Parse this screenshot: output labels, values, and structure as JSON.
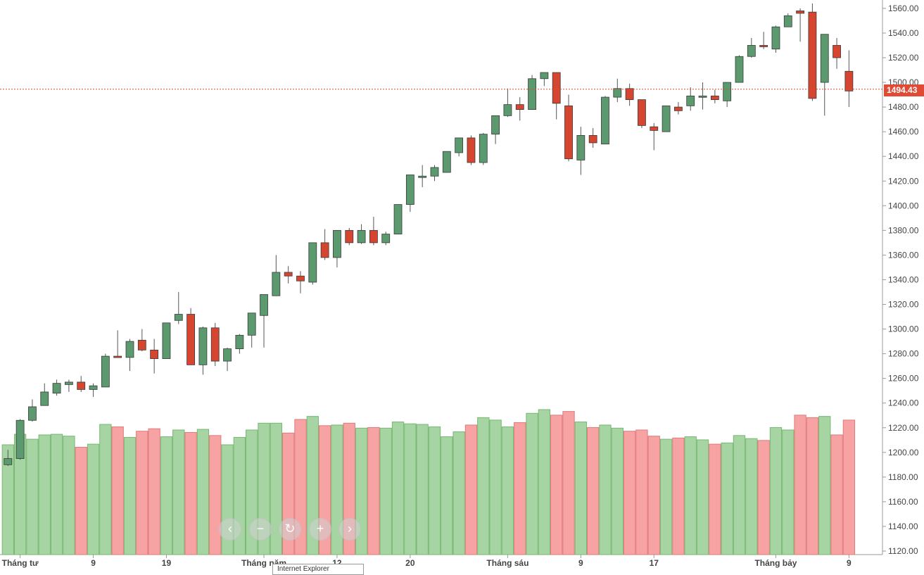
{
  "chart_data": {
    "type": "candlestick",
    "y_axis": {
      "ticks": [
        "1120.00",
        "1140.00",
        "1160.00",
        "1180.00",
        "1200.00",
        "1220.00",
        "1240.00",
        "1260.00",
        "1280.00",
        "1300.00",
        "1320.00",
        "1340.00",
        "1360.00",
        "1380.00",
        "1400.00",
        "1420.00",
        "1440.00",
        "1460.00",
        "1480.00",
        "1500.00",
        "1520.00",
        "1540.00",
        "1560.00"
      ],
      "min": 1117,
      "max": 1570
    },
    "x_axis": {
      "ticks": [
        {
          "label": "Tháng tư",
          "index": 1
        },
        {
          "label": "9",
          "index": 7
        },
        {
          "label": "19",
          "index": 13
        },
        {
          "label": "Tháng năm",
          "index": 21
        },
        {
          "label": "12",
          "index": 27
        },
        {
          "label": "20",
          "index": 33
        },
        {
          "label": "Tháng sáu",
          "index": 41
        },
        {
          "label": "9",
          "index": 47
        },
        {
          "label": "17",
          "index": 53
        },
        {
          "label": "Tháng bảy",
          "index": 63
        },
        {
          "label": "9",
          "index": 69
        }
      ]
    },
    "last_price": "1494.43",
    "last_price_value": 1494.43,
    "colors": {
      "up": "#5b9a6e",
      "down": "#d64530",
      "vol_up": "#a6d4a2",
      "vol_down": "#f7a3a3",
      "vol_up_border": "#76b972",
      "vol_down_border": "#e07a7a",
      "price_line": "#e04b35"
    },
    "candles": [
      [
        1190,
        1202,
        1189,
        1195
      ],
      [
        1195,
        1227,
        1194,
        1226
      ],
      [
        1226,
        1243,
        1225,
        1237
      ],
      [
        1238,
        1256,
        1238,
        1249
      ],
      [
        1248,
        1259,
        1246,
        1256
      ],
      [
        1255,
        1259,
        1249,
        1257
      ],
      [
        1257,
        1262,
        1249,
        1251
      ],
      [
        1251,
        1256,
        1245,
        1254
      ],
      [
        1253,
        1280,
        1253,
        1278
      ],
      [
        1278,
        1299,
        1277,
        1277
      ],
      [
        1277,
        1292,
        1266,
        1290
      ],
      [
        1291,
        1300,
        1282,
        1283
      ],
      [
        1283,
        1292,
        1264,
        1276
      ],
      [
        1276,
        1305,
        1276,
        1305
      ],
      [
        1307,
        1330,
        1304,
        1312
      ],
      [
        1312,
        1317,
        1271,
        1271
      ],
      [
        1271,
        1302,
        1263,
        1301
      ],
      [
        1301,
        1305,
        1270,
        1274
      ],
      [
        1274,
        1285,
        1266,
        1284
      ],
      [
        1284,
        1296,
        1280,
        1295
      ],
      [
        1295,
        1312,
        1285,
        1313
      ],
      [
        1311,
        1327,
        1285,
        1328
      ],
      [
        1327,
        1360,
        1327,
        1346
      ],
      [
        1346,
        1351,
        1337,
        1343
      ],
      [
        1343,
        1347,
        1329,
        1339
      ],
      [
        1338,
        1370,
        1336,
        1370
      ],
      [
        1370,
        1381,
        1356,
        1358
      ],
      [
        1358,
        1380,
        1350,
        1380
      ],
      [
        1380,
        1382,
        1368,
        1370
      ],
      [
        1370,
        1385,
        1369,
        1380
      ],
      [
        1380,
        1391,
        1368,
        1370
      ],
      [
        1370,
        1379,
        1368,
        1377
      ],
      [
        1377,
        1400,
        1377,
        1401
      ],
      [
        1401,
        1425,
        1395,
        1425
      ],
      [
        1424,
        1433,
        1415,
        1424
      ],
      [
        1424,
        1433,
        1420,
        1431
      ],
      [
        1427,
        1444,
        1427,
        1444
      ],
      [
        1443,
        1455,
        1440,
        1455
      ],
      [
        1455,
        1457,
        1433,
        1435
      ],
      [
        1435,
        1459,
        1433,
        1458
      ],
      [
        1458,
        1473,
        1450,
        1473
      ],
      [
        1473,
        1495,
        1472,
        1482
      ],
      [
        1482,
        1488,
        1469,
        1478
      ],
      [
        1478,
        1506,
        1478,
        1503
      ],
      [
        1503,
        1508,
        1497,
        1508
      ],
      [
        1508,
        1508,
        1470,
        1483
      ],
      [
        1481,
        1490,
        1436,
        1438
      ],
      [
        1437,
        1464,
        1425,
        1457
      ],
      [
        1457,
        1463,
        1447,
        1451
      ],
      [
        1450,
        1489,
        1450,
        1488
      ],
      [
        1488,
        1503,
        1484,
        1495
      ],
      [
        1495,
        1499,
        1481,
        1486
      ],
      [
        1486,
        1486,
        1463,
        1465
      ],
      [
        1464,
        1467,
        1445,
        1461
      ],
      [
        1460,
        1481,
        1460,
        1481
      ],
      [
        1480,
        1484,
        1474,
        1477
      ],
      [
        1481,
        1496,
        1477,
        1489
      ],
      [
        1489,
        1500,
        1478,
        1489
      ],
      [
        1489,
        1494,
        1483,
        1486
      ],
      [
        1485,
        1500,
        1480,
        1500
      ],
      [
        1500,
        1522,
        1500,
        1521
      ],
      [
        1521,
        1536,
        1520,
        1530
      ],
      [
        1530,
        1541,
        1527,
        1529
      ],
      [
        1527,
        1546,
        1524,
        1545
      ],
      [
        1545,
        1556,
        1545,
        1554
      ],
      [
        1558,
        1560,
        1533,
        1556
      ],
      [
        1557,
        1564,
        1485,
        1487
      ],
      [
        1500,
        1538,
        1473,
        1539
      ],
      [
        1530,
        1536,
        1511,
        1520
      ],
      [
        1509,
        1526,
        1480,
        1493
      ]
    ],
    "volumes": [
      178,
      195,
      187,
      194,
      195,
      192,
      174,
      179,
      211,
      207,
      190,
      200,
      204,
      191,
      202,
      198,
      203,
      193,
      178,
      190,
      202,
      213,
      213,
      197,
      219,
      224,
      209,
      210,
      213,
      205,
      206,
      205,
      215,
      212,
      211,
      207,
      191,
      199,
      210,
      222,
      218,
      207,
      214,
      229,
      235,
      226,
      232,
      215,
      206,
      210,
      205,
      200,
      202,
      192,
      187,
      189,
      191,
      186,
      179,
      181,
      193,
      188,
      185,
      206,
      202,
      226,
      222,
      224,
      194,
      218
    ],
    "volume_max": 240
  },
  "navigation": {
    "prev": "‹",
    "zoom_out": "−",
    "reset": "↻",
    "zoom_in": "+",
    "next": "›"
  },
  "tooltip_text": "Internet Explorer"
}
